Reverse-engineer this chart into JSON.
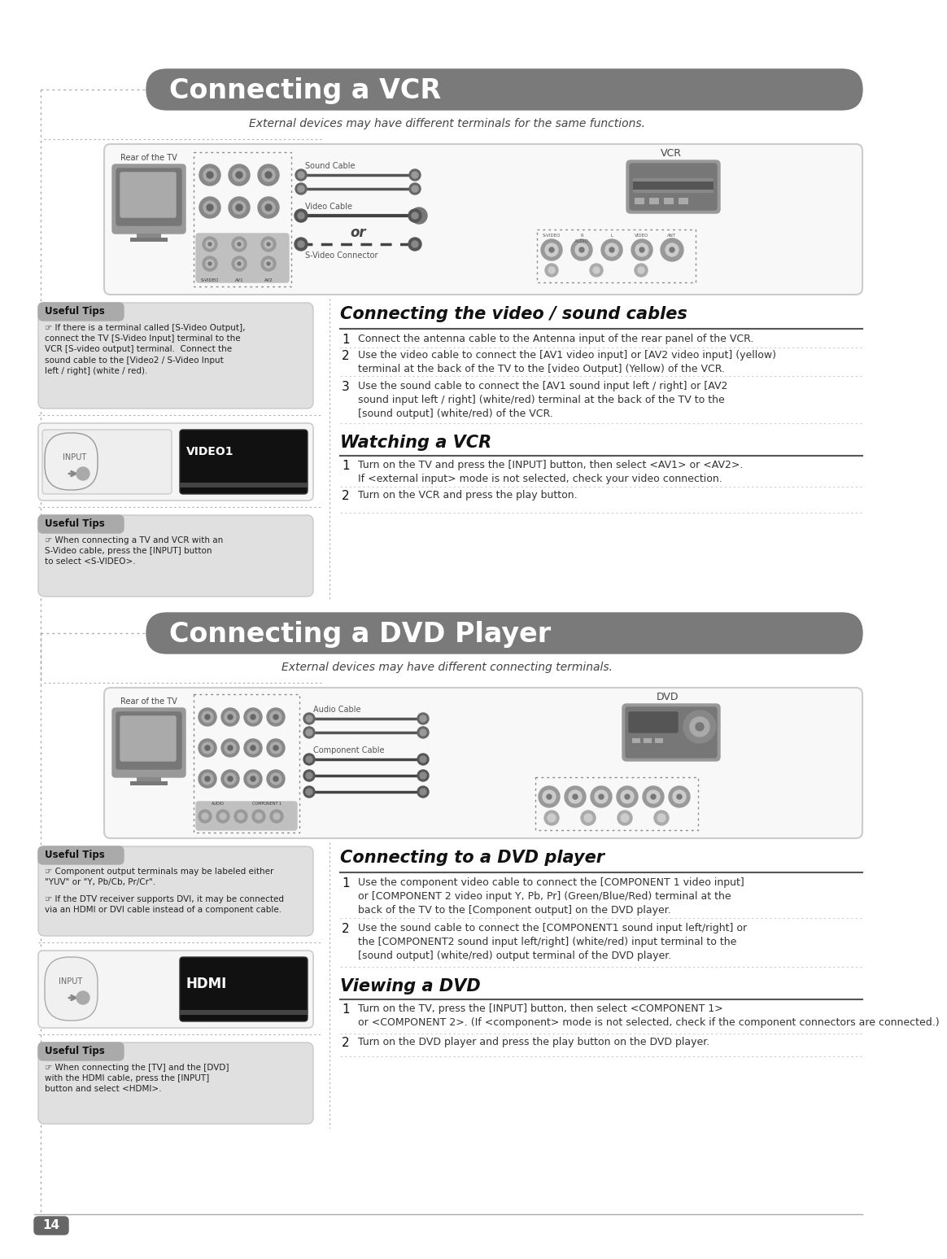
{
  "bg_color": "#ffffff",
  "title1": "Connecting a VCR",
  "title2": "Connecting a DVD Player",
  "title_bg": "#7a7a7a",
  "title_text_color": "#ffffff",
  "subtitle1": "External devices may have different terminals for the same functions.",
  "subtitle2": "External devices may have different connecting terminals.",
  "section_vcr_video_title": "Connecting the video / sound cables",
  "section_vcr_watch_title": "Watching a VCR",
  "section_dvd_connect_title": "Connecting to a DVD player",
  "section_dvd_view_title": "Viewing a DVD",
  "useful_tips_title": "Useful Tips",
  "vcr_tip1": "If there is a terminal called [S-Video Output],\nconnect the TV [S-Video Input] terminal to the\nVCR [S-video output] terminal.  Connect the\nsound cable to the [Video2 / S-Video Input\nleft / right] (white / red).",
  "vcr_tip2": "When connecting a TV and VCR with an\nS-Video cable, press the [INPUT] button\nto select <S-VIDEO>.",
  "dvd_tip1a": "Component output terminals may be labeled either\n\"YUV\" or \"Y, Pb/Cb, Pr/Cr\".",
  "dvd_tip1b": "If the DTV receiver supports DVI, it may be connected\nvia an HDMI or DVI cable instead of a component cable.",
  "dvd_tip2": "When connecting the [TV] and the [DVD]\nwith the HDMI cable, press the [INPUT]\nbutton and select <HDMI>.",
  "vcr_step1": "Connect the antenna cable to the Antenna input of the rear panel of the VCR.",
  "vcr_step2": "Use the video cable to connect the [AV1 video input] or [AV2 video input] (yellow)\nterminal at the back of the TV to the [video Output] (Yellow) of the VCR.",
  "vcr_step3": "Use the sound cable to connect the [AV1 sound input left / right] or [AV2\nsound input left / right] (white/red) terminal at the back of the TV to the\n[sound output] (white/red) of the VCR.",
  "vcr_watch1": "Turn on the TV and press the [INPUT] button, then select <AV1> or <AV2>.\nIf <external input> mode is not selected, check your video connection.",
  "vcr_watch2": "Turn on the VCR and press the play button.",
  "dvd_connect1": "Use the component video cable to connect the [COMPONENT 1 video input]\nor [COMPONENT 2 video input Y, Pb, Pr] (Green/Blue/Red) terminal at the\nback of the TV to the [Component output] on the DVD player.",
  "dvd_connect2": "Use the sound cable to connect the [COMPONENT1 sound input left/right] or\nthe [COMPONENT2 sound input left/right] (white/red) input terminal to the\n[sound output] (white/red) output terminal of the DVD player.",
  "dvd_view1": "Turn on the TV, press the [INPUT] button, then select <COMPONENT 1>\nor <COMPONENT 2>. (If <component> mode is not selected, check if the component connectors are connected.)",
  "dvd_view2": "Turn on the DVD player and press the play button on the DVD player.",
  "page_number": "14",
  "tips_bg": "#e0e0e0",
  "tips_header_bg": "#aaaaaa",
  "box_border": "#cccccc",
  "dot_color": "#aaaaaa",
  "line_color": "#666666",
  "text_dark": "#111111",
  "text_mid": "#444444"
}
